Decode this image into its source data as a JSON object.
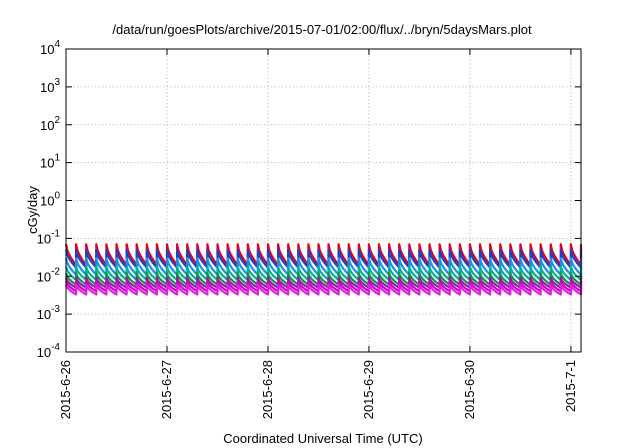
{
  "chart_data": {
    "type": "line",
    "title": "/data/run/goesPlots/archive/2015-07-01/02:00/flux/../bryn/5daysMars.plot",
    "xlabel": "Coordinated Universal Time (UTC)",
    "ylabel": "cGy/day",
    "yscale": "log",
    "ylim": [
      0.0001,
      10000
    ],
    "xlim_days": [
      0,
      5.1
    ],
    "grid": true,
    "x_ticks": [
      {
        "day": 0,
        "label": "2015-6-26"
      },
      {
        "day": 1,
        "label": "2015-6-27"
      },
      {
        "day": 2,
        "label": "2015-6-28"
      },
      {
        "day": 3,
        "label": "2015-6-29"
      },
      {
        "day": 4,
        "label": "2015-6-30"
      },
      {
        "day": 5,
        "label": "2015-7-1"
      }
    ],
    "y_ticks": [
      {
        "exp": "4"
      },
      {
        "exp": "3"
      },
      {
        "exp": "2"
      },
      {
        "exp": "1"
      },
      {
        "exp": "0"
      },
      {
        "exp": "-1"
      },
      {
        "exp": "-2"
      },
      {
        "exp": "-3"
      },
      {
        "exp": "-4"
      }
    ],
    "y_tick_base": "10",
    "sawtooth_period_days": 0.1,
    "series": [
      {
        "color": "#e8001a",
        "peak": 0.07,
        "trough": 0.02
      },
      {
        "color": "#1f3fcf",
        "peak": 0.05,
        "trough": 0.017
      },
      {
        "color": "#1e90e0",
        "peak": 0.03,
        "trough": 0.011
      },
      {
        "color": "#00b0a0",
        "peak": 0.018,
        "trough": 0.008
      },
      {
        "color": "#1a9040",
        "peak": 0.012,
        "trough": 0.006
      },
      {
        "color": "#7a2aa0",
        "peak": 0.009,
        "trough": 0.005
      },
      {
        "color": "#d000c8",
        "peak": 0.0075,
        "trough": 0.004
      },
      {
        "color": "#e020e0",
        "peak": 0.006,
        "trough": 0.0033
      }
    ]
  }
}
